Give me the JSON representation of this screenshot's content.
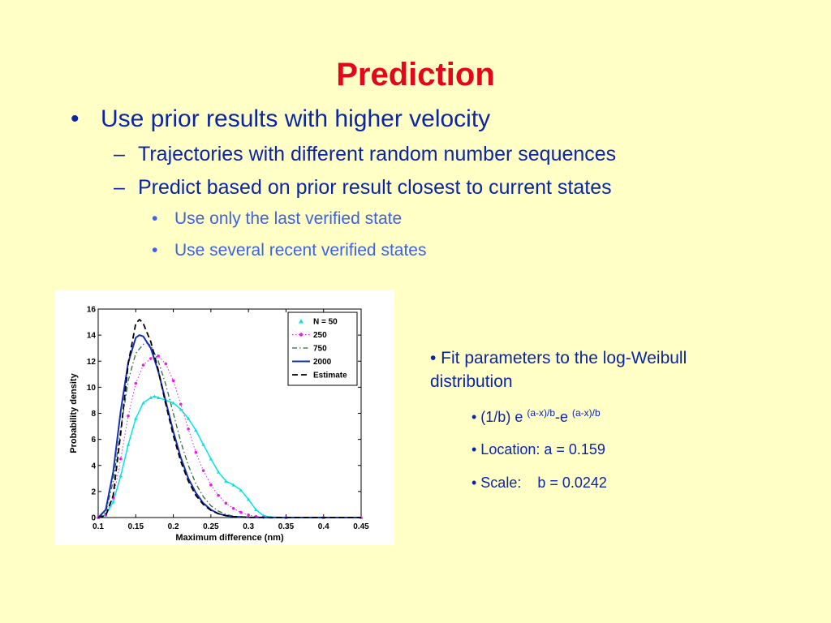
{
  "slide": {
    "title": "Prediction",
    "bullets": [
      {
        "marker": "•",
        "text": "Use prior results with higher velocity"
      },
      {
        "marker": "–",
        "text": "Trajectories with different random number sequences"
      },
      {
        "marker": "–",
        "text": "Predict based on prior result closest to current states"
      },
      {
        "marker": "•",
        "text": "Use only the last verified state"
      },
      {
        "marker": "•",
        "text": "Use several recent verified states"
      }
    ],
    "side": {
      "fit_text": "• Fit parameters to the log-Weibull distribution",
      "formula_prefix": "• (1/b) e ",
      "formula_sup1": "(a-x)/b",
      "formula_mid": "-e ",
      "formula_sup2": "(a-x)/b",
      "location": "• Location: a = 0.159",
      "scale_label": "• Scale:",
      "scale_value": "b = 0.0242"
    },
    "colors": {
      "background": "#ffffc6",
      "title": "#e3071d",
      "text": "#0b25a7",
      "sub_text": "#3d62e3"
    }
  },
  "chart_data": {
    "type": "line",
    "title": "",
    "xlabel": "Maximum difference (nm)",
    "ylabel": "Probability density",
    "xlim": [
      0.1,
      0.45
    ],
    "ylim": [
      0,
      16
    ],
    "xticks": [
      0.1,
      0.15,
      0.2,
      0.25,
      0.3,
      0.35,
      0.4,
      0.45
    ],
    "yticks": [
      0,
      2,
      4,
      6,
      8,
      10,
      12,
      14,
      16
    ],
    "legend_position": "top-right",
    "series": [
      {
        "name": "N = 50",
        "color": "#00e5e5",
        "style": "markers-triangle",
        "x": [
          0.1,
          0.11,
          0.12,
          0.13,
          0.14,
          0.15,
          0.16,
          0.17,
          0.175,
          0.18,
          0.19,
          0.2,
          0.21,
          0.22,
          0.23,
          0.24,
          0.25,
          0.26,
          0.27,
          0.28,
          0.29,
          0.3,
          0.31,
          0.32,
          0.33,
          0.35,
          0.4,
          0.45
        ],
        "y": [
          0,
          0.2,
          1.2,
          3.2,
          5.6,
          7.6,
          8.8,
          9.2,
          9.3,
          9.2,
          9.0,
          8.8,
          8.3,
          7.6,
          6.7,
          5.6,
          4.5,
          3.5,
          2.8,
          2.5,
          2.1,
          1.4,
          0.6,
          0.15,
          0.03,
          0,
          0,
          0
        ]
      },
      {
        "name": "250",
        "color": "#e61fe6",
        "style": "dotted-markers",
        "x": [
          0.1,
          0.11,
          0.12,
          0.13,
          0.14,
          0.15,
          0.16,
          0.17,
          0.18,
          0.19,
          0.2,
          0.21,
          0.22,
          0.23,
          0.24,
          0.25,
          0.26,
          0.27,
          0.28,
          0.29,
          0.3,
          0.31,
          0.32,
          0.35,
          0.4,
          0.45
        ],
        "y": [
          0,
          0.2,
          1.5,
          4.5,
          7.8,
          10.3,
          11.7,
          12.2,
          12.4,
          11.8,
          10.5,
          8.7,
          6.8,
          5.0,
          3.6,
          2.5,
          1.7,
          1.1,
          0.7,
          0.4,
          0.2,
          0.08,
          0.02,
          0,
          0,
          0
        ]
      },
      {
        "name": "750",
        "color": "#2e6b3e",
        "style": "dash-dot",
        "x": [
          0.1,
          0.11,
          0.12,
          0.13,
          0.14,
          0.15,
          0.16,
          0.165,
          0.17,
          0.18,
          0.19,
          0.2,
          0.21,
          0.22,
          0.23,
          0.24,
          0.25,
          0.26,
          0.27,
          0.28,
          0.3,
          0.35,
          0.45
        ],
        "y": [
          0,
          0.4,
          2.8,
          6.8,
          10.5,
          12.6,
          13.3,
          13.4,
          13.2,
          12.0,
          10.2,
          8.0,
          5.8,
          4.0,
          2.6,
          1.6,
          0.9,
          0.5,
          0.25,
          0.1,
          0.02,
          0,
          0
        ]
      },
      {
        "name": "2000",
        "color": "#1530b8",
        "style": "solid",
        "x": [
          0.1,
          0.11,
          0.12,
          0.13,
          0.14,
          0.15,
          0.155,
          0.16,
          0.17,
          0.18,
          0.19,
          0.2,
          0.21,
          0.22,
          0.23,
          0.24,
          0.25,
          0.26,
          0.27,
          0.28,
          0.3,
          0.35,
          0.45
        ],
        "y": [
          0,
          0.6,
          3.5,
          8.2,
          11.9,
          13.8,
          14.0,
          13.9,
          13.0,
          11.2,
          8.9,
          6.6,
          4.6,
          3.0,
          1.9,
          1.1,
          0.6,
          0.3,
          0.15,
          0.07,
          0.01,
          0,
          0
        ]
      },
      {
        "name": "Estimate",
        "color": "#000000",
        "style": "dashed",
        "x": [
          0.1,
          0.11,
          0.12,
          0.13,
          0.14,
          0.15,
          0.155,
          0.16,
          0.17,
          0.18,
          0.19,
          0.2,
          0.21,
          0.22,
          0.23,
          0.24,
          0.25,
          0.26,
          0.27,
          0.28,
          0.3,
          0.35,
          0.45
        ],
        "y": [
          0,
          0.15,
          1.7,
          6.5,
          11.8,
          14.9,
          15.2,
          14.9,
          13.5,
          11.3,
          8.7,
          6.3,
          4.3,
          2.8,
          1.7,
          1.0,
          0.55,
          0.3,
          0.15,
          0.07,
          0.01,
          0,
          0
        ]
      }
    ]
  }
}
